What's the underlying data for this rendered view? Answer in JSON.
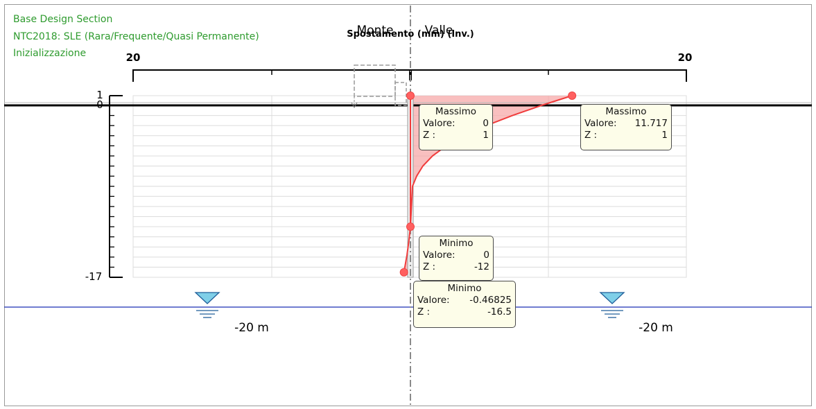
{
  "header": {
    "line1": "Base Design Section",
    "line2": "NTC2018: SLE (Rara/Frequente/Quasi Permanente)",
    "line3": "Inizializzazione"
  },
  "top_labels": {
    "left_side": "Monte",
    "right_side": "Valle",
    "axis_title": "Spostamento (mm) (Inv.)"
  },
  "water": {
    "left_label": "-20 m",
    "right_label": "-20 m"
  },
  "colors": {
    "header_green": "#2e9b2e",
    "curve_red": "#f03c3c",
    "fill_pink": "#f7a9a9",
    "water_blue": "#1a2fb5",
    "water_icon": "#7fcfe8",
    "box_bg": "#fdfde9"
  },
  "boxes": {
    "max_left": {
      "title": "Massimo",
      "value_label": "Valore:",
      "value": "0",
      "z_label": "Z :",
      "z": "1"
    },
    "max_right": {
      "title": "Massimo",
      "value_label": "Valore:",
      "value": "11.717",
      "z_label": "Z :",
      "z": "1"
    },
    "min_left": {
      "title": "Minimo",
      "value_label": "Valore:",
      "value": "0",
      "z_label": "Z :",
      "z": "-12"
    },
    "min_right": {
      "title": "Minimo",
      "value_label": "Valore:",
      "value": "-0.46825",
      "z_label": "Z :",
      "z": "-16.5"
    }
  },
  "chart_data": {
    "type": "line",
    "title": "",
    "xlabel": "Spostamento (mm) (Inv.)",
    "ylabel": "",
    "x_tick_labels": [
      "20",
      "20"
    ],
    "xlim": [
      -20,
      20
    ],
    "ylim": [
      -17,
      1
    ],
    "y_tick_labels": [
      "1",
      "0",
      "-17"
    ],
    "grid": true,
    "series": [
      {
        "x": [
          11.717,
          9.5,
          7.4,
          5.5,
          3.9,
          2.6,
          1.6,
          0.9,
          0.45,
          0.15,
          0.0,
          -0.12,
          -0.25,
          -0.38,
          -0.46825
        ],
        "y": [
          1,
          0,
          -1,
          -2,
          -3,
          -4,
          -5,
          -6,
          -7,
          -8,
          -12,
          -13.5,
          -14.8,
          -15.8,
          -16.5
        ]
      },
      {
        "x": [
          0,
          0,
          0,
          0,
          0,
          0
        ],
        "y": [
          1,
          -2,
          -5,
          -8,
          -10,
          -12
        ]
      }
    ],
    "markers": [
      {
        "x": 0,
        "y": 1
      },
      {
        "x": 11.717,
        "y": 1
      },
      {
        "x": 0,
        "y": -12
      },
      {
        "x": -0.46825,
        "y": -16.5
      }
    ]
  }
}
